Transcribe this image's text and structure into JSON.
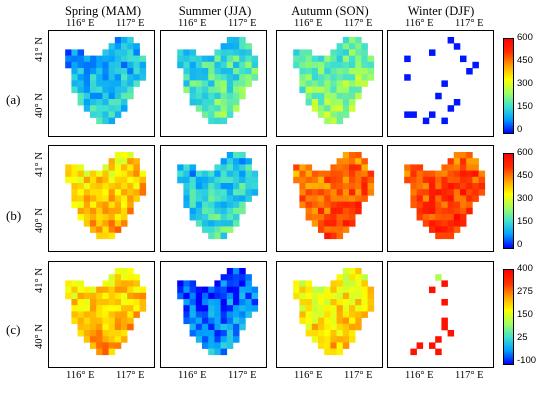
{
  "columns": [
    "Spring (MAM)",
    "Summer (JJA)",
    "Autumn (SON)",
    "Winter (DJF)"
  ],
  "rows": [
    "(a)",
    "(b)",
    "(c)"
  ],
  "lon_labels": [
    "116° E",
    "117° E"
  ],
  "lat_labels": [
    "41° N",
    "40° N"
  ],
  "colorbars": [
    {
      "ticks": [
        "600",
        "450",
        "300",
        "150",
        "0"
      ],
      "stops": [
        "#0000ff",
        "#00a0ff",
        "#40e0d0",
        "#a0ff60",
        "#ffff00",
        "#ffa000",
        "#ff3000",
        "#ff0000"
      ]
    },
    {
      "ticks": [
        "600",
        "450",
        "300",
        "150",
        "0"
      ],
      "stops": [
        "#0000ff",
        "#00a0ff",
        "#40e0d0",
        "#a0ff60",
        "#ffff00",
        "#ffa000",
        "#ff3000",
        "#ff0000"
      ]
    },
    {
      "ticks": [
        "400",
        "275",
        "150",
        "25",
        "-100"
      ],
      "stops": [
        "#0000ff",
        "#00a0ff",
        "#40e0d0",
        "#a0ff60",
        "#ffff00",
        "#ffa000",
        "#ff3000",
        "#ff0000"
      ]
    }
  ],
  "map_data": {
    "type": "heatmap-grid",
    "value_level_by_panel": [
      [
        0.18,
        0.28,
        0.35,
        0.1
      ],
      [
        0.62,
        0.22,
        0.78,
        0.82
      ],
      [
        0.62,
        0.08,
        0.58,
        0.8
      ]
    ]
  }
}
